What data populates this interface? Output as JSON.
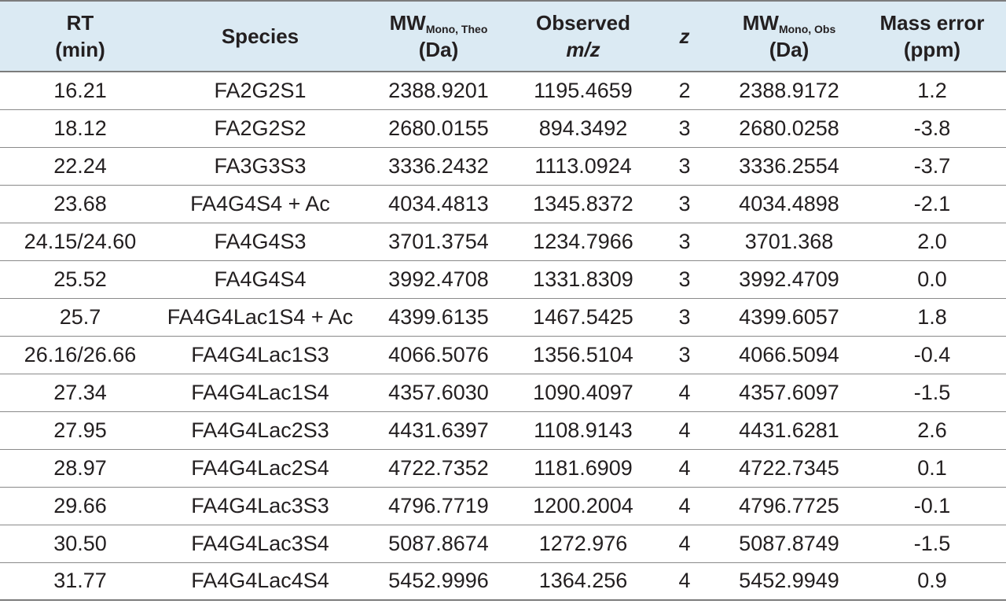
{
  "header": {
    "rt": [
      "RT",
      "(min)"
    ],
    "species": "Species",
    "mw_theo": {
      "main": "MW",
      "sub": "Mono, Theo",
      "unit": "(Da)"
    },
    "observed": [
      "Observed",
      "m/z"
    ],
    "z": "z",
    "mw_obs": {
      "main": "MW",
      "sub": "Mono, Obs",
      "unit": "(Da)"
    },
    "mass_error": [
      "Mass error",
      "(ppm)"
    ]
  },
  "rows": [
    {
      "rt": "16.21",
      "species": "FA2G2S1",
      "mw_theo": "2388.9201",
      "observed": "1195.4659",
      "z": "2",
      "mw_obs": "2388.9172",
      "mass_error": "1.2"
    },
    {
      "rt": "18.12",
      "species": "FA2G2S2",
      "mw_theo": "2680.0155",
      "observed": "894.3492",
      "z": "3",
      "mw_obs": "2680.0258",
      "mass_error": "-3.8"
    },
    {
      "rt": "22.24",
      "species": "FA3G3S3",
      "mw_theo": "3336.2432",
      "observed": "1113.0924",
      "z": "3",
      "mw_obs": "3336.2554",
      "mass_error": "-3.7"
    },
    {
      "rt": "23.68",
      "species": "FA4G4S4 + Ac",
      "mw_theo": "4034.4813",
      "observed": "1345.8372",
      "z": "3",
      "mw_obs": "4034.4898",
      "mass_error": "-2.1"
    },
    {
      "rt": "24.15/24.60",
      "species": "FA4G4S3",
      "mw_theo": "3701.3754",
      "observed": "1234.7966",
      "z": "3",
      "mw_obs": "3701.368",
      "mass_error": "2.0"
    },
    {
      "rt": "25.52",
      "species": "FA4G4S4",
      "mw_theo": "3992.4708",
      "observed": "1331.8309",
      "z": "3",
      "mw_obs": "3992.4709",
      "mass_error": "0.0"
    },
    {
      "rt": "25.7",
      "species": "FA4G4Lac1S4 + Ac",
      "mw_theo": "4399.6135",
      "observed": "1467.5425",
      "z": "3",
      "mw_obs": "4399.6057",
      "mass_error": "1.8"
    },
    {
      "rt": "26.16/26.66",
      "species": "FA4G4Lac1S3",
      "mw_theo": "4066.5076",
      "observed": "1356.5104",
      "z": "3",
      "mw_obs": "4066.5094",
      "mass_error": "-0.4"
    },
    {
      "rt": "27.34",
      "species": "FA4G4Lac1S4",
      "mw_theo": "4357.6030",
      "observed": "1090.4097",
      "z": "4",
      "mw_obs": "4357.6097",
      "mass_error": "-1.5"
    },
    {
      "rt": "27.95",
      "species": "FA4G4Lac2S3",
      "mw_theo": "4431.6397",
      "observed": "1108.9143",
      "z": "4",
      "mw_obs": "4431.6281",
      "mass_error": "2.6"
    },
    {
      "rt": "28.97",
      "species": "FA4G4Lac2S4",
      "mw_theo": "4722.7352",
      "observed": "1181.6909",
      "z": "4",
      "mw_obs": "4722.7345",
      "mass_error": "0.1"
    },
    {
      "rt": "29.66",
      "species": "FA4G4Lac3S3",
      "mw_theo": "4796.7719",
      "observed": "1200.2004",
      "z": "4",
      "mw_obs": "4796.7725",
      "mass_error": "-0.1"
    },
    {
      "rt": "30.50",
      "species": "FA4G4Lac3S4",
      "mw_theo": "5087.8674",
      "observed": "1272.976",
      "z": "4",
      "mw_obs": "5087.8749",
      "mass_error": "-1.5"
    },
    {
      "rt": "31.77",
      "species": "FA4G4Lac4S4",
      "mw_theo": "5452.9996",
      "observed": "1364.256",
      "z": "4",
      "mw_obs": "5452.9949",
      "mass_error": "0.9"
    }
  ]
}
